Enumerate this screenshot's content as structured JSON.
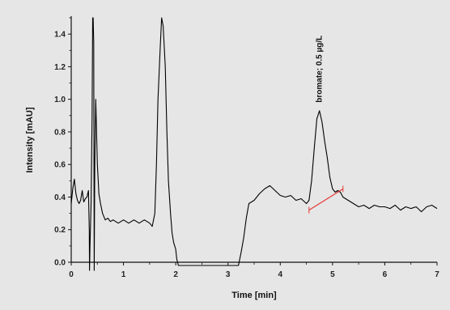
{
  "chart_data": {
    "type": "line",
    "title": "",
    "xlabel": "Time [min]",
    "ylabel": "Intensity [mAU]",
    "xlim": [
      0,
      7
    ],
    "ylim": [
      0,
      1.5
    ],
    "x_ticks": [
      "0",
      "1",
      "2",
      "3",
      "4",
      "5",
      "6",
      "7"
    ],
    "y_ticks": [
      "0.0",
      "0.2",
      "0.4",
      "0.6",
      "0.8",
      "1.0",
      "1.2",
      "1.4"
    ],
    "grid": false,
    "series": [
      {
        "name": "",
        "color": "#000000",
        "x": [
          0.0,
          0.03,
          0.06,
          0.09,
          0.12,
          0.15,
          0.18,
          0.21,
          0.24,
          0.27,
          0.3,
          0.33,
          0.345,
          0.35,
          0.36,
          0.38,
          0.4,
          0.41,
          0.42,
          0.43,
          0.44,
          0.45,
          0.47,
          0.5,
          0.53,
          0.56,
          0.6,
          0.65,
          0.7,
          0.75,
          0.8,
          0.9,
          1.0,
          1.1,
          1.2,
          1.3,
          1.4,
          1.5,
          1.55,
          1.6,
          1.63,
          1.66,
          1.7,
          1.73,
          1.76,
          1.8,
          1.83,
          1.86,
          1.9,
          1.93,
          1.96,
          2.0,
          2.02,
          2.05,
          3.2,
          3.25,
          3.3,
          3.35,
          3.4,
          3.5,
          3.6,
          3.7,
          3.8,
          3.9,
          4.0,
          4.1,
          4.2,
          4.3,
          4.4,
          4.5,
          4.55,
          4.6,
          4.65,
          4.7,
          4.75,
          4.8,
          4.85,
          4.9,
          4.95,
          5.0,
          5.05,
          5.1,
          5.15,
          5.2,
          5.3,
          5.4,
          5.5,
          5.6,
          5.7,
          5.8,
          5.9,
          6.0,
          6.1,
          6.2,
          6.3,
          6.4,
          6.5,
          6.6,
          6.7,
          6.8,
          6.9,
          7.0
        ],
        "y": [
          0.36,
          0.45,
          0.51,
          0.42,
          0.38,
          0.36,
          0.38,
          0.44,
          0.37,
          0.39,
          0.4,
          0.44,
          0.2,
          -0.05,
          0.1,
          0.35,
          0.9,
          1.5,
          1.5,
          1.35,
          -0.05,
          0.6,
          1.0,
          0.6,
          0.42,
          0.36,
          0.3,
          0.26,
          0.27,
          0.25,
          0.26,
          0.24,
          0.26,
          0.24,
          0.26,
          0.24,
          0.26,
          0.24,
          0.22,
          0.3,
          0.6,
          1.0,
          1.3,
          1.5,
          1.45,
          1.2,
          0.8,
          0.5,
          0.3,
          0.18,
          0.12,
          0.08,
          0.02,
          -0.02,
          -0.02,
          0.06,
          0.15,
          0.27,
          0.36,
          0.38,
          0.42,
          0.45,
          0.47,
          0.44,
          0.41,
          0.4,
          0.41,
          0.38,
          0.39,
          0.36,
          0.38,
          0.5,
          0.7,
          0.88,
          0.93,
          0.86,
          0.74,
          0.64,
          0.52,
          0.45,
          0.43,
          0.44,
          0.43,
          0.4,
          0.38,
          0.36,
          0.34,
          0.35,
          0.33,
          0.35,
          0.34,
          0.34,
          0.33,
          0.35,
          0.32,
          0.34,
          0.33,
          0.34,
          0.31,
          0.34,
          0.35,
          0.33
        ]
      },
      {
        "name": "",
        "color": "#e53935",
        "x": [
          4.55,
          5.2
        ],
        "y": [
          0.32,
          0.45
        ]
      }
    ],
    "annotations": [
      {
        "text": "bromate; 0.5 µg/L",
        "x": 4.75,
        "y": 0.95
      }
    ]
  }
}
